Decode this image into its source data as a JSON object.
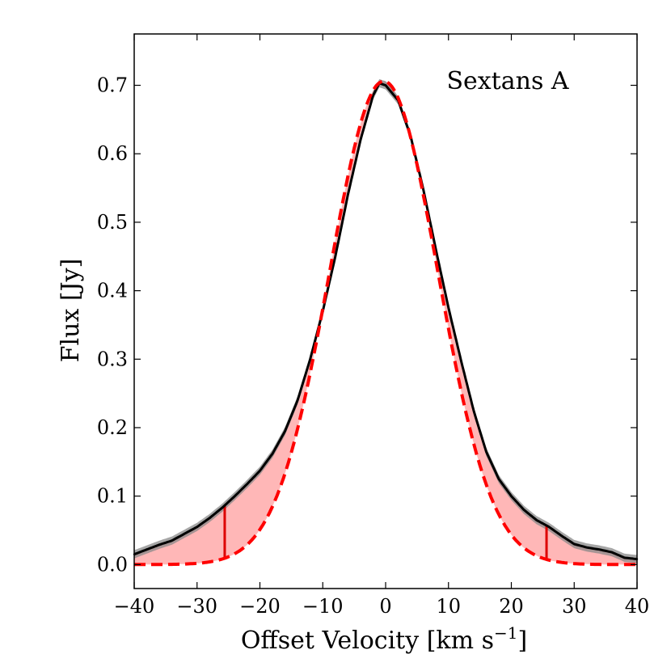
{
  "chart_data": {
    "type": "line",
    "title": "",
    "annotation": "Sextans A",
    "xlabel": "Offset Velocity [km s",
    "xlabel_sup": "−1",
    "xlabel_end": "]",
    "ylabel": "Flux [Jy]",
    "xlim": [
      -40,
      40
    ],
    "ylim": [
      -0.035,
      0.775
    ],
    "xticks": [
      -40,
      -30,
      -20,
      -10,
      0,
      10,
      20,
      30,
      40
    ],
    "xtick_labels": [
      "−40",
      "−30",
      "−20",
      "−10",
      "0",
      "10",
      "20",
      "30",
      "40"
    ],
    "yticks": [
      0.0,
      0.1,
      0.2,
      0.3,
      0.4,
      0.5,
      0.6,
      0.7
    ],
    "ytick_labels": [
      "0.0",
      "0.1",
      "0.2",
      "0.3",
      "0.4",
      "0.5",
      "0.6",
      "0.7"
    ],
    "colors": {
      "observed": "#000000",
      "uncertainty_band": "#888888",
      "gaussian_fit": "#ff0000",
      "excess_fill": "#ff9999",
      "marker": "#dd0000"
    },
    "series": [
      {
        "name": "observed profile",
        "style": "solid",
        "x": [
          -40,
          -38,
          -36,
          -34,
          -32,
          -30,
          -28,
          -26,
          -24,
          -22,
          -20,
          -18,
          -16,
          -14,
          -12,
          -10,
          -8,
          -6,
          -4,
          -2,
          -1,
          0,
          2,
          4,
          6,
          8,
          10,
          12,
          14,
          16,
          18,
          20,
          22,
          24,
          26,
          28,
          30,
          32,
          34,
          36,
          38,
          40
        ],
        "y": [
          0.015,
          0.022,
          0.029,
          0.035,
          0.045,
          0.055,
          0.068,
          0.083,
          0.1,
          0.118,
          0.137,
          0.162,
          0.195,
          0.24,
          0.3,
          0.37,
          0.45,
          0.54,
          0.62,
          0.685,
          0.703,
          0.7,
          0.678,
          0.625,
          0.548,
          0.46,
          0.375,
          0.298,
          0.225,
          0.165,
          0.125,
          0.1,
          0.08,
          0.065,
          0.055,
          0.042,
          0.03,
          0.025,
          0.022,
          0.018,
          0.01,
          0.008
        ]
      },
      {
        "name": "gaussian fit",
        "style": "dashed",
        "model": "gaussian",
        "amplitude": 0.706,
        "center": -0.3,
        "sigma": 8.6
      }
    ],
    "band_halfwidth": 0.006,
    "markers": [
      {
        "x": -25.6,
        "label": "lower velocity limit"
      },
      {
        "x": 25.6,
        "label": "upper velocity limit"
      }
    ]
  }
}
